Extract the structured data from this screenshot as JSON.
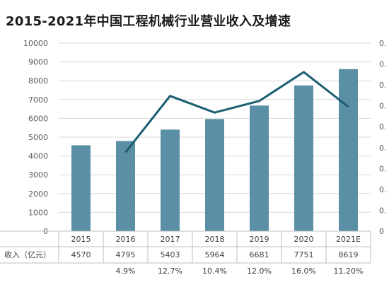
{
  "chart_data": {
    "type": "bar",
    "title": "2015-2021年中国工程机械行业营业收入及增速",
    "categories": [
      "2015",
      "2016",
      "2017",
      "2018",
      "2019",
      "2020",
      "2021E"
    ],
    "y_ticks": [
      "0",
      "1000",
      "2000",
      "3000",
      "4000",
      "5000",
      "6000",
      "7000",
      "8000",
      "9000",
      "10000"
    ],
    "ylim": [
      0,
      10000
    ],
    "y2_tick_fragments": [
      "0.",
      "0.",
      "0.",
      "0.",
      "0.",
      "0.",
      "0.",
      "0.",
      "0.",
      "0"
    ],
    "grid": true,
    "bar_color": "#5a8fa5",
    "line_color": "#1b5e72",
    "series": [
      {
        "name": "收入（亿元）",
        "type": "bar",
        "values": [
          4570,
          4795,
          5403,
          5964,
          6681,
          7751,
          8619
        ],
        "labels": [
          "4570",
          "4795",
          "5403",
          "5964",
          "6681",
          "7751",
          "8619"
        ]
      },
      {
        "name": "",
        "type": "line",
        "values": [
          null,
          4.9,
          12.7,
          10.4,
          12.0,
          16.0,
          11.2
        ],
        "labels": [
          "",
          "4.9%",
          "12.7%",
          "10.4%",
          "12.0%",
          "16.0%",
          "11.20%"
        ]
      }
    ],
    "row_labels": [
      "收入（亿元）",
      ""
    ]
  }
}
